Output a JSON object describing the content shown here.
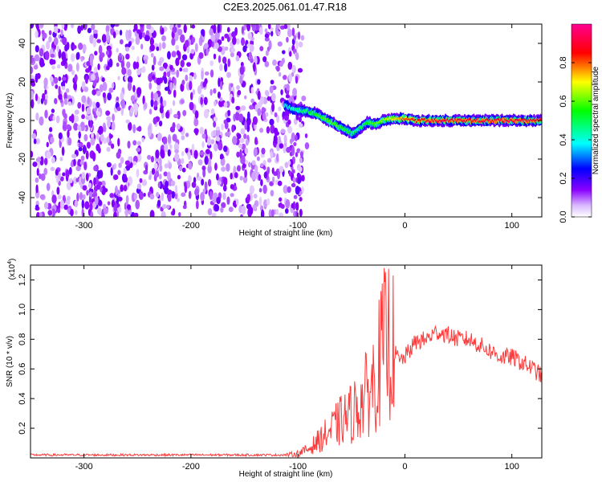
{
  "page": {
    "title": "C2E3.2025.061.01.47.R18"
  },
  "chart_data": [
    {
      "type": "heatmap",
      "xlabel": "Height of straight line (km)",
      "ylabel": "Frequency (Hz)",
      "xlim": [
        -350,
        128
      ],
      "ylim": [
        -50,
        50
      ],
      "x_ticks": [
        -300,
        -200,
        -100,
        0,
        100
      ],
      "y_ticks": [
        -40,
        -20,
        0,
        20,
        40
      ],
      "grid": false,
      "colorbar": {
        "label": "Normalized spectral amplitude",
        "range": [
          0.0,
          1.0
        ],
        "ticks": [
          "0.0",
          "0.2",
          "0.4",
          "0.6",
          "0.8"
        ],
        "tick_values": [
          0.0,
          0.2,
          0.4,
          0.6,
          0.8
        ],
        "colormap": [
          "#ffffff",
          "#d9b8ff",
          "#8a00ff",
          "#0000ff",
          "#00ffff",
          "#00ff00",
          "#ffff00",
          "#ff0000",
          "#ff0090"
        ]
      },
      "noise_region": {
        "x_range": [
          -350,
          -95
        ],
        "dominant_value": 0.15
      },
      "ridge": {
        "x": [
          -112,
          -105,
          -95,
          -85,
          -75,
          -65,
          -55,
          -48,
          -42,
          -35,
          -28,
          -20,
          -12,
          -5,
          0,
          10,
          30,
          60,
          90,
          128
        ],
        "freq": [
          8,
          6,
          5,
          4,
          1,
          -2,
          -5,
          -7,
          -4,
          -1,
          -2,
          0,
          1,
          1,
          1,
          0,
          0,
          0,
          0,
          0
        ],
        "amplitude": [
          0.4,
          0.45,
          0.5,
          0.55,
          0.6,
          0.6,
          0.55,
          0.5,
          0.5,
          0.55,
          0.6,
          0.65,
          0.7,
          0.75,
          0.8,
          0.85,
          0.9,
          0.9,
          0.9,
          0.9
        ]
      }
    },
    {
      "type": "line",
      "xlabel": "Height of straight line (km)",
      "ylabel": "SNR (10 * v/v)",
      "y_multiplier": "(x10",
      "y_multiplier_exp": "4",
      "y_multiplier_close": ")",
      "xlim": [
        -350,
        128
      ],
      "ylim": [
        0,
        1.3
      ],
      "x_ticks": [
        -300,
        -200,
        -100,
        0,
        100
      ],
      "y_ticks": [
        0.2,
        0.4,
        0.6,
        0.8,
        1.0,
        1.2
      ],
      "y_tick_labels": [
        "0.2",
        "0.4",
        "0.6",
        "0.8",
        "1.0",
        "1.2"
      ],
      "grid": false,
      "series": [
        {
          "color": "#ff3a3a",
          "x": [
            -350,
            -300,
            -250,
            -200,
            -150,
            -110,
            -100,
            -90,
            -80,
            -70,
            -60,
            -50,
            -40,
            -30,
            -25,
            -20,
            -15,
            -10,
            -5,
            0,
            10,
            20,
            30,
            40,
            50,
            60,
            70,
            80,
            90,
            100,
            110,
            120,
            128
          ],
          "y": [
            0.02,
            0.02,
            0.02,
            0.02,
            0.02,
            0.02,
            0.03,
            0.06,
            0.12,
            0.18,
            0.25,
            0.3,
            0.38,
            0.5,
            0.62,
            0.75,
            0.8,
            0.72,
            0.65,
            0.68,
            0.78,
            0.8,
            0.85,
            0.83,
            0.8,
            0.8,
            0.76,
            0.72,
            0.68,
            0.68,
            0.64,
            0.6,
            0.55
          ]
        }
      ]
    }
  ]
}
